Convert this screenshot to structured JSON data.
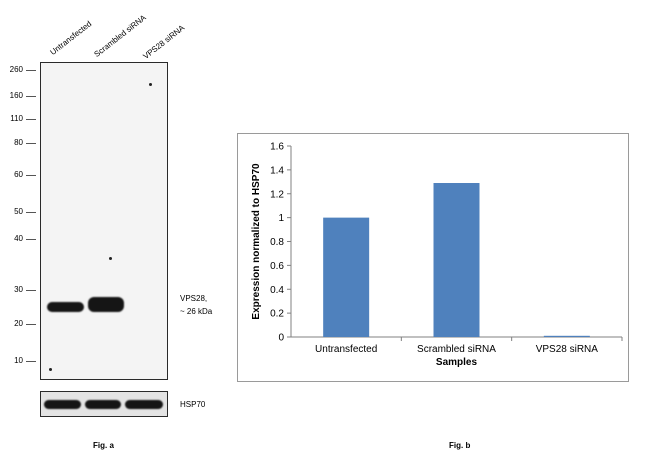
{
  "blot": {
    "lanes": [
      "Untransfected",
      "Scrambled siRNA",
      "VPS28 siRNA"
    ],
    "markers": [
      "260",
      "160",
      "110",
      "80",
      "60",
      "50",
      "40",
      "30",
      "20",
      "10"
    ],
    "band_label_line1": "VPS28,",
    "band_label_line2": "~ 26 kDa",
    "loading_label": "HSP70",
    "figure_label": "Fig. a"
  },
  "chart_data": {
    "type": "bar",
    "categories": [
      "Untransfected",
      "Scrambled siRNA",
      "VPS28 siRNA"
    ],
    "values": [
      1.0,
      1.29,
      0.01
    ],
    "xlabel": "Samples",
    "ylabel": "Expression normalized to HSP70",
    "ylim": [
      0,
      1.6
    ],
    "yticks": [
      "0",
      "0.2",
      "0.4",
      "0.6",
      "0.8",
      "1",
      "1.2",
      "1.4",
      "1.6"
    ],
    "bar_color": "#4f81bd",
    "grid": false,
    "legend": "none"
  },
  "figure_b_label": "Fig. b"
}
